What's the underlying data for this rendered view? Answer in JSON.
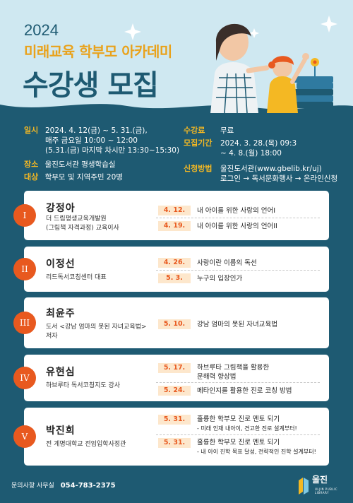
{
  "header": {
    "year": "2024",
    "subtitle": "미래교육 학부모 아카데미",
    "headline": "수강생 모집"
  },
  "info": {
    "schedule_label": "일시",
    "schedule_line1": "2024. 4. 12(금) ~ 5. 31.(금),",
    "schedule_line2": "매주 금요일 10:00 ~ 12:00",
    "schedule_line3": "(5.31.(금) 마지막 차시만 13:30~15:30)",
    "place_label": "장소",
    "place_value": "울진도서관 평생학습실",
    "target_label": "대상",
    "target_value": "학부모 및 지역주민 20명",
    "fee_label": "수강료",
    "fee_value": "무료",
    "period_label": "모집기간",
    "period_line1": "2024. 3. 28.(목) 09:3",
    "period_line2": "~ 4. 8.(월) 18:00",
    "apply_label": "신청방법",
    "apply_line1": "울진도서관(www.gbelib.kr/uj)",
    "apply_line2": "로그인 → 독서문화행사 → 온라인신청"
  },
  "lecturers": [
    {
      "numeral": "I",
      "name": "강정아",
      "desc1": "더 드림평생교육개발원",
      "desc2": "(그림책 자격과정) 교육이사",
      "sessions": [
        {
          "date": "4. 12.",
          "title": "내 아이를 위한 사랑의 언어I"
        },
        {
          "date": "4. 19.",
          "title": "내 아이를 위한 사랑의 언어II"
        }
      ]
    },
    {
      "numeral": "II",
      "name": "이정선",
      "desc1": "리드독서코칭센터 대표",
      "sessions": [
        {
          "date": "4. 26.",
          "title": "사랑이란 이름의 독선"
        },
        {
          "date": "5. 3.",
          "title": "누구의 입장인가"
        }
      ]
    },
    {
      "numeral": "III",
      "name": "최윤주",
      "desc1": "도서 <강남 엄마의 못된 자녀교육법>",
      "desc2": "저자",
      "sessions": [
        {
          "date": "5. 10.",
          "title": "강남 엄마의 못된 자녀교육법"
        }
      ]
    },
    {
      "numeral": "IV",
      "name": "유현심",
      "desc1": "하브루타 독서코칭지도 강사",
      "sessions": [
        {
          "date": "5. 17.",
          "title": "하브루타 그림책을 활용한",
          "title2": "문해력 향상법"
        },
        {
          "date": "5. 24.",
          "title": "메타인지를 활용한 진로 코칭 방법"
        }
      ]
    },
    {
      "numeral": "V",
      "name": "박진희",
      "desc1": "전 계명대학교 전임입학사정관",
      "sessions": [
        {
          "date": "5. 31.",
          "title": "훌륭한 학부모 진로 멘토 되기",
          "note": "- 미래 인재 내아이, 견고한 진로 설계부터!"
        },
        {
          "date": "5. 31.",
          "title": "훌륭한 학부모 진로 멘토 되기",
          "note": "- 내 아이 진학 목표 달성, 전략적인 진학 설계부터!"
        }
      ]
    }
  ],
  "footer": {
    "contact_label": "문의사항 사무실",
    "phone": "054-783-2375",
    "logo_text": "울진",
    "logo_sub": "ULJIN PUBLIC LIBRARY"
  },
  "colors": {
    "navy": "#1e5a72",
    "light_blue": "#cfe8f1",
    "orange": "#e8591f",
    "yellow": "#f4b823"
  }
}
